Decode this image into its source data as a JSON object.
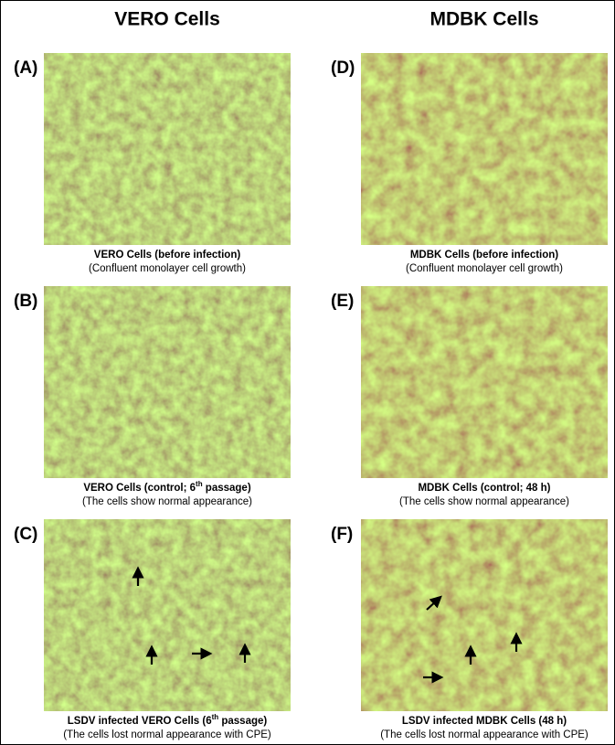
{
  "columns": [
    {
      "header": "VERO Cells",
      "panels": [
        {
          "label": "(A)",
          "caption": {
            "before": "VERO Cells (before infection)"
          },
          "note": "(Confluent monolayer cell growth)"
        },
        {
          "label": "(B)",
          "caption": {
            "before": "VERO Cells (control; 6",
            "sup": "th",
            "after": " passage)"
          },
          "note": "(The cells show normal appearance)"
        },
        {
          "label": "(C)",
          "caption": {
            "before": "LSDV infected VERO Cells (6",
            "sup": "th",
            "after": " passage)"
          },
          "note": "(The cells lost normal appearance with CPE)"
        }
      ]
    },
    {
      "header": "MDBK Cells",
      "panels": [
        {
          "label": "(D)",
          "caption": {
            "before": "MDBK Cells (before infection)"
          },
          "note": "(Confluent monolayer cell growth)"
        },
        {
          "label": "(E)",
          "caption": {
            "before": "MDBK Cells (control; 48 h)"
          },
          "note": "(The cells show normal appearance)"
        },
        {
          "label": "(F)",
          "caption": {
            "before": "LSDV infected MDBK Cells (48 h)"
          },
          "note": "(The cells lost normal appearance with CPE)"
        }
      ]
    }
  ]
}
